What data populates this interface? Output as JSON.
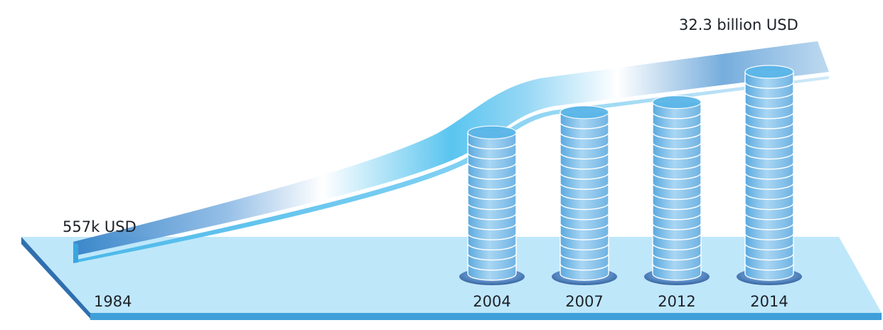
{
  "chart_data": {
    "type": "bar",
    "title": "",
    "xlabel": "",
    "ylabel": "",
    "start": {
      "year": "1984",
      "label": "557k USD"
    },
    "end": {
      "label": "32.3 billion USD"
    },
    "categories": [
      "2004",
      "2007",
      "2012",
      "2014"
    ],
    "values": [
      14,
      16,
      17,
      20
    ],
    "value_note": "stack heights in coin-disc units, estimated visually",
    "colors": {
      "platform": "#bfe7fa",
      "platform_edge": "#3f9fd8",
      "ribbon_dark": "#2f7fc6",
      "ribbon_light": "#ffffff",
      "disc_fill": "#8fc6ea",
      "disc_top": "#5ab6e8",
      "base_dark": "#2c5b97"
    }
  }
}
